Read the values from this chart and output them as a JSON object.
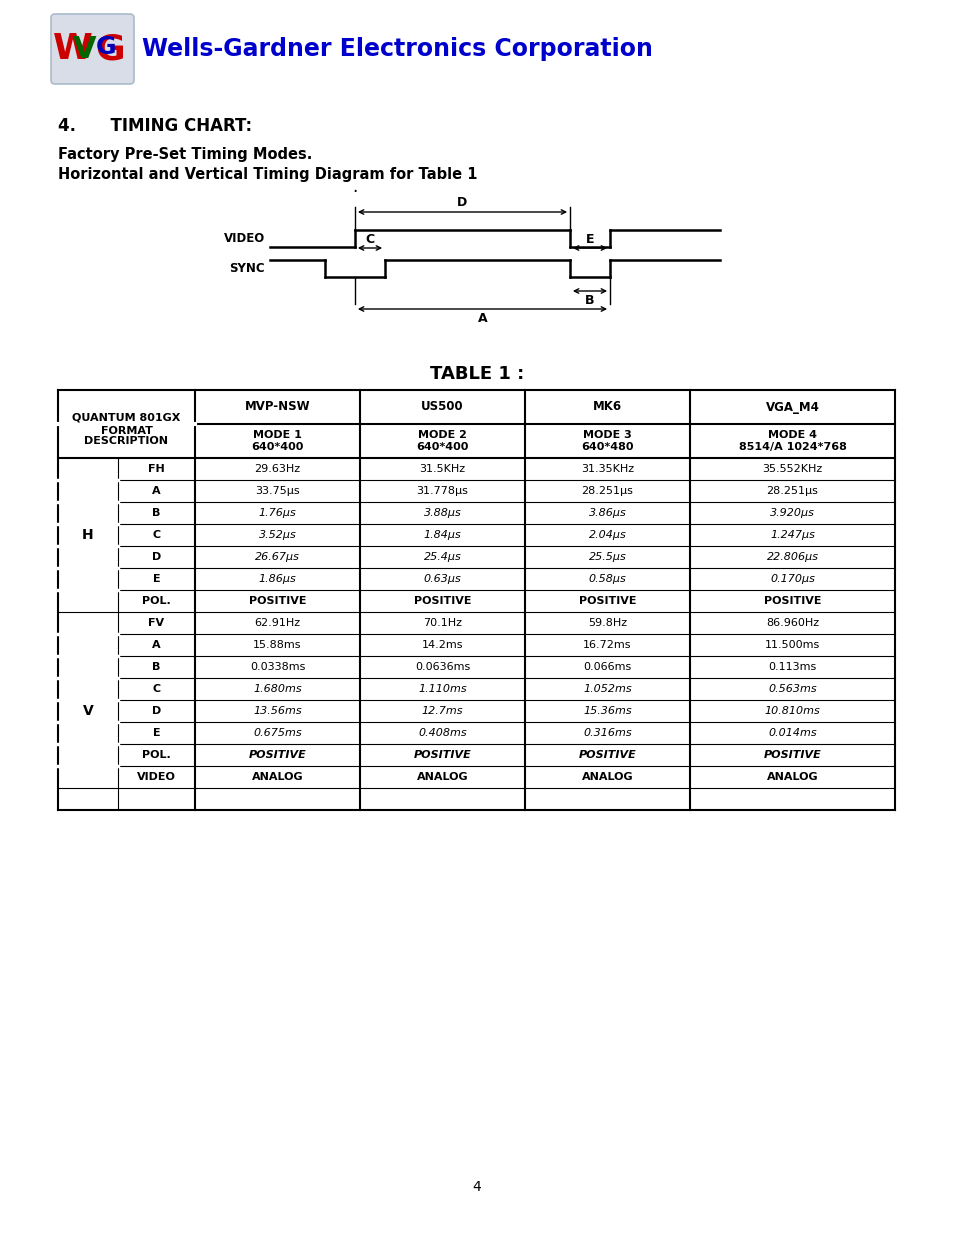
{
  "title_company": "Wells-Gardner Electronics Corporation",
  "section_title": "4.      TIMING CHART:",
  "subtitle_line1": "Factory Pre-Set Timing Modes.",
  "subtitle_line2": "Horizontal and Vertical Timing Diagram for Table 1",
  "table_title": "TABLE 1 :",
  "page_number": "4",
  "company_color": "#0000cc",
  "col_headers": [
    "QUANTUM 801GX\nFORMAT",
    "MVP-NSW",
    "US500",
    "MK6",
    "VGA_M4"
  ],
  "desc_row": [
    "DESCRIPTION",
    "MODE 1\n640*400",
    "MODE 2\n640*400",
    "MODE 3\n640*480",
    "MODE 4\n8514/A 1024*768"
  ],
  "table_rows": [
    [
      "H",
      "FH",
      "29.63Hz",
      "31.5KHz",
      "31.35KHz",
      "35.552KHz"
    ],
    [
      "H",
      "A",
      "33.75μs",
      "31.778μs",
      "28.251μs",
      "28.251μs"
    ],
    [
      "H",
      "B",
      "1.76μs",
      "3.88μs",
      "3.86μs",
      "3.920μs"
    ],
    [
      "H",
      "C",
      "3.52μs",
      "1.84μs",
      "2.04μs",
      "1.247μs"
    ],
    [
      "H",
      "D",
      "26.67μs",
      "25.4μs",
      "25.5μs",
      "22.806μs"
    ],
    [
      "H",
      "E",
      "1.86μs",
      "0.63μs",
      "0.58μs",
      "0.170μs"
    ],
    [
      "H",
      "POL.",
      "POSITIVE",
      "POSITIVE",
      "POSITIVE",
      "POSITIVE"
    ],
    [
      "V",
      "FV",
      "62.91Hz",
      "70.1Hz",
      "59.8Hz",
      "86.960Hz"
    ],
    [
      "V",
      "A",
      "15.88ms",
      "14.2ms",
      "16.72ms",
      "11.500ms"
    ],
    [
      "V",
      "B",
      "0.0338ms",
      "0.0636ms",
      "0.066ms",
      "0.113ms"
    ],
    [
      "V",
      "C",
      "1.680ms",
      "1.110ms",
      "1.052ms",
      "0.563ms"
    ],
    [
      "V",
      "D",
      "13.56ms",
      "12.7ms",
      "15.36ms",
      "10.810ms"
    ],
    [
      "V",
      "E",
      "0.675ms",
      "0.408ms",
      "0.316ms",
      "0.014ms"
    ],
    [
      "V",
      "POL.",
      "POSITIVE",
      "POSITIVE",
      "POSITIVE",
      "POSITIVE"
    ],
    [
      "V",
      "VIDEO",
      "ANALOG",
      "ANALOG",
      "ANALOG",
      "ANALOG"
    ]
  ],
  "background_color": "#ffffff"
}
